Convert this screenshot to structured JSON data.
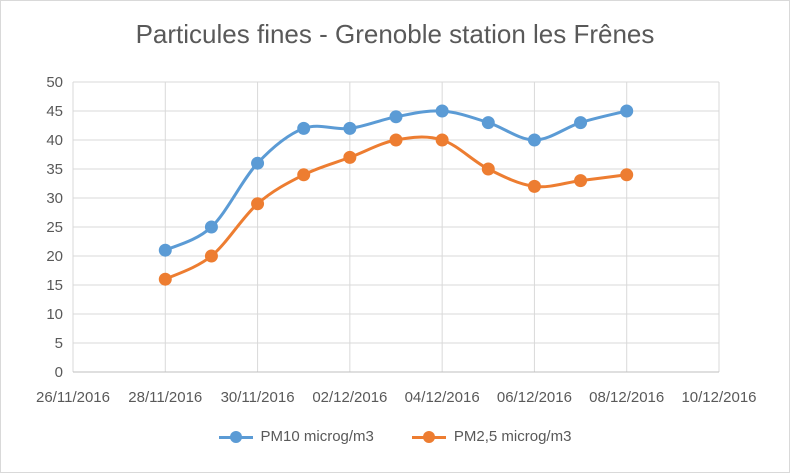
{
  "chart_data": {
    "type": "line",
    "title": "Particules fines - Grenoble station les Frênes",
    "x_labels": [
      "26/11/2016",
      "28/11/2016",
      "30/11/2016",
      "02/12/2016",
      "04/12/2016",
      "06/12/2016",
      "08/12/2016",
      "10/12/2016"
    ],
    "x_dates": [
      "2016-11-26",
      "2016-11-28",
      "2016-11-30",
      "2016-12-02",
      "2016-12-04",
      "2016-12-06",
      "2016-12-08",
      "2016-12-10"
    ],
    "y_ticks": [
      "0",
      "5",
      "10",
      "15",
      "20",
      "25",
      "30",
      "35",
      "40",
      "45",
      "50"
    ],
    "ylim": [
      0,
      50
    ],
    "xlim": [
      "2016-11-26",
      "2016-12-10"
    ],
    "x": [
      "2016-11-28",
      "2016-11-29",
      "2016-11-30",
      "2016-12-01",
      "2016-12-02",
      "2016-12-03",
      "2016-12-04",
      "2016-12-05",
      "2016-12-06",
      "2016-12-07",
      "2016-12-08"
    ],
    "series": [
      {
        "name": "PM10 microg/m3",
        "color": "#5b9bd5",
        "values": [
          21,
          25,
          36,
          42,
          42,
          44,
          45,
          43,
          40,
          43,
          45
        ]
      },
      {
        "name": "PM2,5 microg/m3",
        "color": "#ed7d31",
        "values": [
          16,
          20,
          29,
          34,
          37,
          40,
          40,
          35,
          32,
          33,
          34
        ]
      }
    ],
    "grid": true,
    "legend_position": "bottom"
  }
}
